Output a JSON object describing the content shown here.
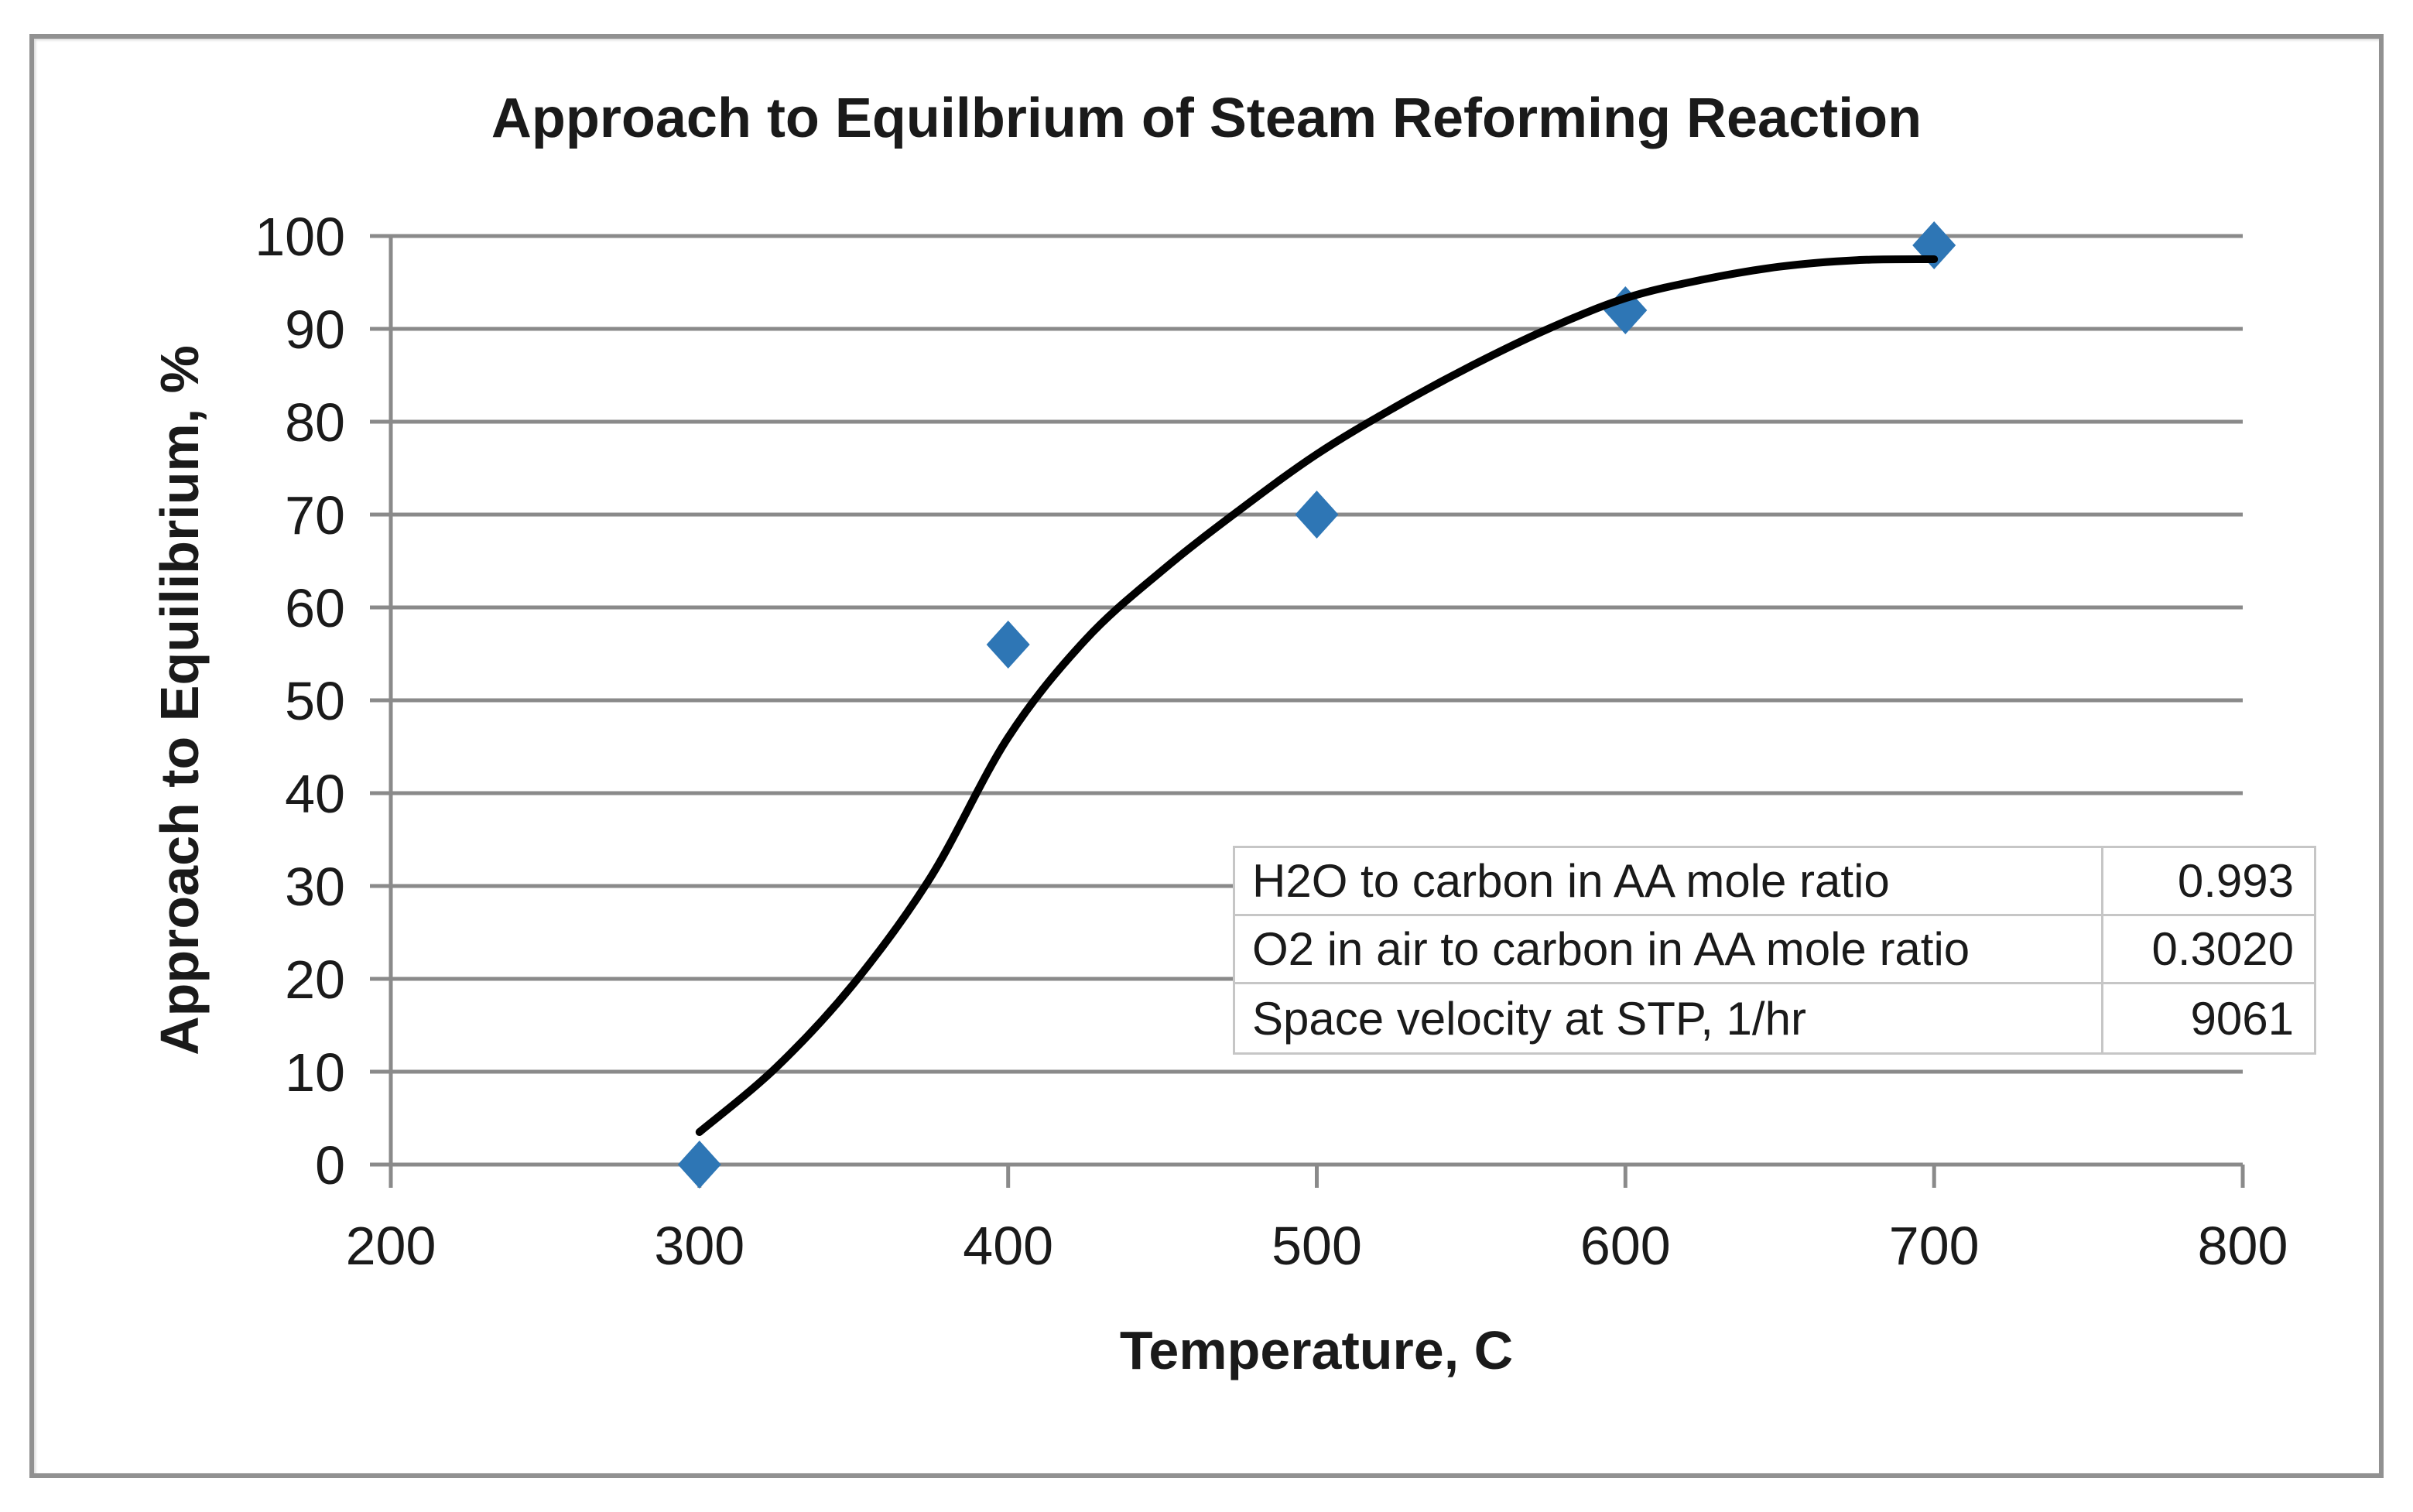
{
  "colors": {
    "marker_blue": "#2E76B5",
    "trendline_black": "#000000",
    "axis_gray": "#8A8A8A",
    "table_border_gray": "#C6C6C6",
    "frame_gray": "#919191",
    "text_black": "#1A1A1A"
  },
  "chart_data": {
    "type": "scatter",
    "title": "Approach to Equilbrium of Steam Reforming Reaction",
    "xlabel": "Temperature, C",
    "ylabel": "Approach to Equilibrium, %",
    "xlim": [
      200,
      800
    ],
    "ylim": [
      0,
      100
    ],
    "x_ticks": [
      200,
      300,
      400,
      500,
      600,
      700,
      800
    ],
    "y_ticks": [
      0,
      10,
      20,
      30,
      40,
      50,
      60,
      70,
      80,
      90,
      100
    ],
    "grid": "horizontal-only",
    "legend": "none",
    "series": [
      {
        "name": "approach-to-equilibrium-data",
        "type": "scatter",
        "marker": "diamond",
        "points": [
          [
            300,
            0
          ],
          [
            400,
            56
          ],
          [
            500,
            70
          ],
          [
            600,
            92
          ],
          [
            700,
            99
          ]
        ]
      },
      {
        "name": "trendline",
        "type": "smooth-line",
        "points": [
          [
            300,
            3.5
          ],
          [
            325,
            10.5
          ],
          [
            350,
            19.5
          ],
          [
            375,
            31
          ],
          [
            400,
            46
          ],
          [
            425,
            56.5
          ],
          [
            450,
            64
          ],
          [
            475,
            70.5
          ],
          [
            500,
            76.5
          ],
          [
            525,
            81.5
          ],
          [
            550,
            86
          ],
          [
            575,
            90
          ],
          [
            600,
            93.3
          ],
          [
            625,
            95.3
          ],
          [
            650,
            96.7
          ],
          [
            675,
            97.4
          ],
          [
            700,
            97.5
          ]
        ]
      }
    ],
    "inset_table": {
      "rows": [
        {
          "label": "H2O to carbon in AA mole ratio",
          "value": "0.993"
        },
        {
          "label": "O2 in air to carbon in AA mole ratio",
          "value": "0.3020"
        },
        {
          "label": "Space velocity at STP, 1/hr",
          "value": "9061"
        }
      ]
    }
  }
}
